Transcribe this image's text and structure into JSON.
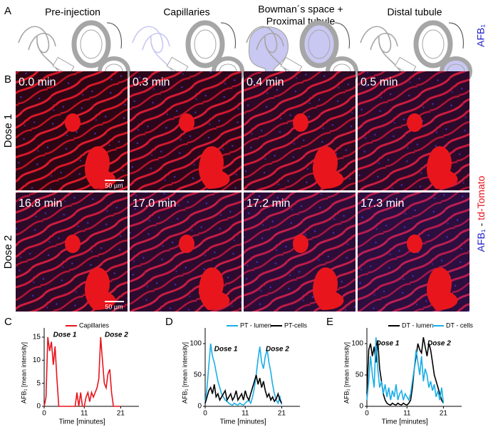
{
  "panel_labels": [
    "A",
    "B",
    "C",
    "D",
    "E"
  ],
  "panel_a": {
    "titles": [
      [
        "Pre-injection"
      ],
      [
        "Capillaries"
      ],
      [
        "Bowman´s space +",
        "Proximal tubule"
      ],
      [
        "Distal tubule"
      ]
    ],
    "side_label": "AFB₁"
  },
  "panel_b": {
    "rows": [
      "Dose 1",
      "Dose 2"
    ],
    "times": [
      [
        "0.0 min",
        "0.3 min",
        "0.4 min",
        "0.5 min"
      ],
      [
        "16.8 min",
        "17.0 min",
        "17.2 min",
        "17.3 min"
      ]
    ],
    "scale_bar": "50 µm",
    "side_label": {
      "afb": "AFB₁",
      "separator": "-",
      "marker": "td-Tomato"
    }
  },
  "chart_data": [
    {
      "type": "line",
      "ylabel": "AFB₁ [mean intensity]",
      "xlabel": "Time [minutes]",
      "x": [
        0,
        0.5,
        1,
        1.5,
        2,
        2.5,
        3,
        3.5,
        4,
        4.5,
        5,
        5.5,
        6,
        6.5,
        7,
        7.5,
        8,
        8.5,
        9,
        9.5,
        10,
        10.5,
        11,
        11.5,
        12,
        12.5,
        13,
        13.5,
        14,
        14.5,
        15,
        15.5,
        16,
        16.5,
        17,
        17.5,
        18,
        18.5,
        19,
        19.5,
        20,
        20.5,
        21
      ],
      "xlim": [
        0,
        26
      ],
      "xticks": [
        0,
        11,
        21
      ],
      "ylim": [
        0,
        17
      ],
      "yticks": [
        0,
        5,
        10,
        15
      ],
      "annotations": [
        "Dose 1",
        "Dose 2"
      ],
      "series": [
        {
          "name": "Capillaries",
          "color": "#e8141c",
          "values": [
            0,
            2,
            15,
            12,
            14,
            9,
            13,
            6,
            0,
            0,
            0,
            0,
            0,
            0,
            0,
            0,
            0,
            0,
            3,
            0,
            3,
            0,
            0,
            2,
            3,
            1,
            3,
            2,
            3,
            4,
            6,
            15,
            10,
            5,
            4,
            7,
            8,
            3,
            0,
            0,
            0,
            0,
            0
          ]
        }
      ]
    },
    {
      "type": "line",
      "ylabel": "AFB₁ [mean intensity]",
      "xlabel": "Time [minutes]",
      "x": [
        0,
        0.5,
        1,
        1.5,
        2,
        2.5,
        3,
        3.5,
        4,
        4.5,
        5,
        5.5,
        6,
        6.5,
        7,
        7.5,
        8,
        8.5,
        9,
        9.5,
        10,
        10.5,
        11,
        11.5,
        12,
        12.5,
        13,
        13.5,
        14,
        14.5,
        15,
        15.5,
        16,
        16.5,
        17,
        17.5,
        18,
        18.5,
        19,
        19.5,
        20,
        20.5,
        21
      ],
      "xlim": [
        0,
        26
      ],
      "xticks": [
        0,
        11,
        21
      ],
      "ylim": [
        0,
        125
      ],
      "yticks": [
        0,
        50,
        100
      ],
      "annotations": [
        "Dose 1",
        "Dose 2"
      ],
      "series": [
        {
          "name": "PT - lumen",
          "color": "#1aaee6",
          "values": [
            5,
            30,
            65,
            100,
            80,
            70,
            55,
            40,
            30,
            20,
            15,
            10,
            8,
            5,
            3,
            2,
            5,
            3,
            2,
            5,
            3,
            2,
            5,
            8,
            10,
            5,
            15,
            30,
            50,
            75,
            95,
            70,
            60,
            80,
            90,
            70,
            55,
            35,
            20,
            10,
            5,
            15,
            3
          ]
        },
        {
          "name": "PT-cells",
          "color": "#000000",
          "values": [
            5,
            15,
            25,
            30,
            20,
            35,
            15,
            20,
            10,
            15,
            20,
            25,
            10,
            15,
            20,
            10,
            15,
            25,
            10,
            15,
            20,
            10,
            25,
            15,
            10,
            20,
            30,
            40,
            50,
            35,
            45,
            30,
            40,
            25,
            15,
            20,
            10,
            15,
            8,
            12,
            20,
            10,
            5
          ]
        }
      ]
    },
    {
      "type": "line",
      "ylabel": "AFB₁ [mean intensity]",
      "xlabel": "Time [minutes]",
      "x": [
        0,
        0.5,
        1,
        1.5,
        2,
        2.5,
        3,
        3.5,
        4,
        4.5,
        5,
        5.5,
        6,
        6.5,
        7,
        7.5,
        8,
        8.5,
        9,
        9.5,
        10,
        10.5,
        11,
        11.5,
        12,
        12.5,
        13,
        13.5,
        14,
        14.5,
        15,
        15.5,
        16,
        16.5,
        17,
        17.5,
        18,
        18.5,
        19,
        19.5,
        20,
        20.5,
        21
      ],
      "xlim": [
        0,
        26
      ],
      "xticks": [
        0,
        11,
        21
      ],
      "ylim": [
        0,
        125
      ],
      "yticks": [
        0,
        50,
        100
      ],
      "annotations": [
        "Dose 1",
        "Dose 2"
      ],
      "series": [
        {
          "name": "DT - lumen",
          "color": "#000000",
          "values": [
            20,
            90,
            100,
            80,
            95,
            70,
            105,
            60,
            40,
            20,
            10,
            5,
            3,
            2,
            5,
            3,
            2,
            5,
            3,
            2,
            5,
            3,
            2,
            5,
            10,
            30,
            60,
            80,
            100,
            90,
            85,
            110,
            95,
            80,
            100,
            90,
            70,
            50,
            40,
            30,
            20,
            10,
            5
          ]
        },
        {
          "name": "DT - cells",
          "color": "#1aaee6",
          "values": [
            10,
            40,
            80,
            50,
            30,
            110,
            60,
            30,
            40,
            20,
            35,
            15,
            30,
            10,
            25,
            15,
            35,
            10,
            20,
            25,
            10,
            20,
            15,
            10,
            20,
            40,
            60,
            90,
            70,
            50,
            80,
            40,
            60,
            50,
            30,
            40,
            25,
            35,
            15,
            25,
            10,
            30,
            5
          ]
        }
      ]
    }
  ]
}
